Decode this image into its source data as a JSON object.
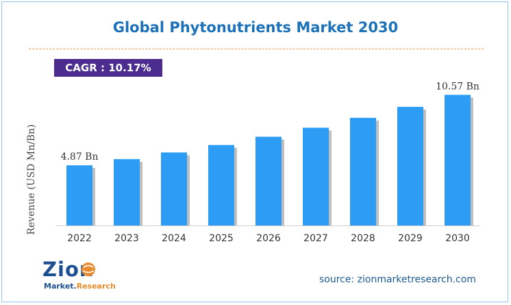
{
  "header": {
    "title": "Global Phytonutrients Market 2030",
    "cagr": "CAGR : 10.17%"
  },
  "chart_data": {
    "type": "bar",
    "title": "Global Phytonutrients Market 2030",
    "ylabel": "Revenue (USD Mn/Bn)",
    "xlabel": "",
    "categories": [
      "2022",
      "2023",
      "2024",
      "2025",
      "2026",
      "2027",
      "2028",
      "2029",
      "2030"
    ],
    "values": [
      4.87,
      5.37,
      5.91,
      6.51,
      7.18,
      7.91,
      8.71,
      9.6,
      10.57
    ],
    "data_labels": [
      {
        "index": 0,
        "text": "4.87 Bn"
      },
      {
        "index": 8,
        "text": "10.57 Bn"
      }
    ],
    "ylim": [
      0,
      11.7
    ],
    "grid": false,
    "bar_color": "#2d9cf5",
    "bar_shadow_color": "#bfbfbf"
  },
  "logo": {
    "word": "Zion",
    "sub_a": "Market.",
    "sub_b": "Research"
  },
  "footer": {
    "source": "source: zionmarketresearch.com"
  }
}
